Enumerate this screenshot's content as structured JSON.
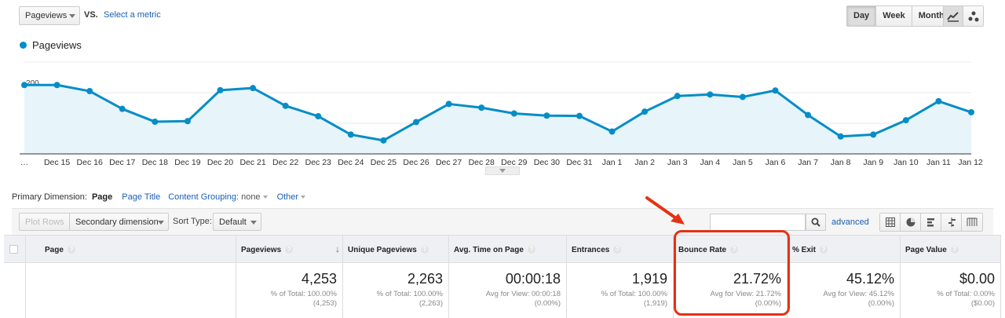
{
  "metric_select": {
    "value": "Pageviews"
  },
  "vs_label": "VS.",
  "select_metric_link": "Select a metric",
  "period_buttons": [
    "Day",
    "Week",
    "Month"
  ],
  "period_active": "Day",
  "legend": {
    "label": "Pageviews",
    "color": "#058dc7"
  },
  "chart_data": {
    "type": "area",
    "series": [
      {
        "name": "Pageviews",
        "values": [
          225,
          225,
          205,
          147,
          105,
          107,
          208,
          215,
          157,
          123,
          63,
          44,
          104,
          163,
          151,
          132,
          125,
          124,
          73,
          138,
          189,
          194,
          186,
          207,
          127,
          57,
          63,
          110,
          172,
          136
        ]
      }
    ],
    "x_tick_labels": [
      "…",
      "Dec 15",
      "Dec 16",
      "Dec 17",
      "Dec 18",
      "Dec 19",
      "Dec 20",
      "Dec 21",
      "Dec 22",
      "Dec 23",
      "Dec 24",
      "Dec 25",
      "Dec 26",
      "Dec 27",
      "Dec 28",
      "Dec 29",
      "Dec 30",
      "Dec 31",
      "Jan 1",
      "Jan 2",
      "Jan 3",
      "Jan 4",
      "Jan 5",
      "Jan 6",
      "Jan 7",
      "Jan 8",
      "Jan 9",
      "Jan 10",
      "Jan 11",
      "Jan 12"
    ],
    "y_ticks": [
      100,
      200,
      300
    ],
    "ylim": [
      0,
      300
    ],
    "grid": true,
    "line_color": "#058dc7",
    "fill_color": "#e7f4fa"
  },
  "primary_dimension": {
    "label": "Primary Dimension:",
    "active": "Page",
    "links": [
      "Page Title",
      "Content Grouping:"
    ],
    "content_grouping_value": "none",
    "other": "Other"
  },
  "toolbar": {
    "plot_rows": "Plot Rows",
    "secondary_dimension": "Secondary dimension",
    "sort_type_label": "Sort Type:",
    "sort_type_value": "Default",
    "search_value": "",
    "advanced": "advanced"
  },
  "table": {
    "headers": [
      "Page",
      "Pageviews",
      "Unique Pageviews",
      "Avg. Time on Page",
      "Entrances",
      "Bounce Rate",
      "% Exit",
      "Page Value"
    ],
    "totals": [
      {
        "value": "4,253",
        "sub1": "% of Total: 100.00%",
        "sub2": "(4,253)"
      },
      {
        "value": "2,263",
        "sub1": "% of Total: 100.00%",
        "sub2": "(2,263)"
      },
      {
        "value": "00:00:18",
        "sub1": "Avg for View: 00:00:18",
        "sub2": "(0.00%)"
      },
      {
        "value": "1,919",
        "sub1": "% of Total: 100.00%",
        "sub2": "(1,919)"
      },
      {
        "value": "21.72%",
        "sub1": "Avg for View: 21.72%",
        "sub2": "(0.00%)"
      },
      {
        "value": "45.12%",
        "sub1": "Avg for View: 45.12%",
        "sub2": "(0.00%)"
      },
      {
        "value": "$0.00",
        "sub1": "% of Total: 0.00%",
        "sub2": "($0.00)"
      }
    ]
  },
  "annotation_color": "#e53214"
}
